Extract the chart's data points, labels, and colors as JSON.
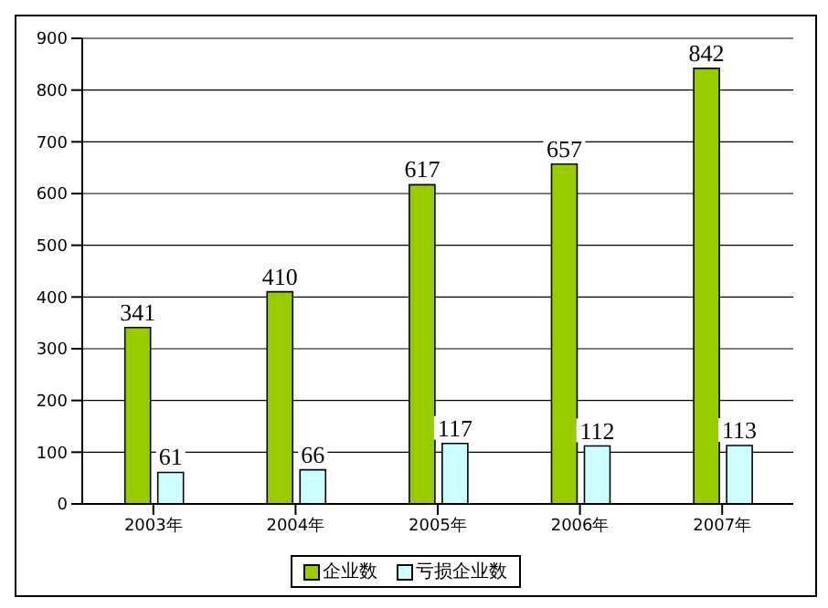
{
  "chart_data": {
    "type": "bar",
    "categories": [
      "2003年",
      "2004年",
      "2005年",
      "2006年",
      "2007年"
    ],
    "series": [
      {
        "name": "企业数",
        "color": "#99cc00",
        "values": [
          341,
          410,
          617,
          657,
          842
        ]
      },
      {
        "name": "亏损企业数",
        "color": "#ccffff",
        "values": [
          61,
          66,
          117,
          112,
          113
        ]
      }
    ],
    "ylim": [
      0,
      900
    ],
    "yticks": [
      0,
      100,
      200,
      300,
      400,
      500,
      600,
      700,
      800,
      900
    ],
    "grid": "y",
    "legend": "bottom",
    "data_labels": true
  }
}
